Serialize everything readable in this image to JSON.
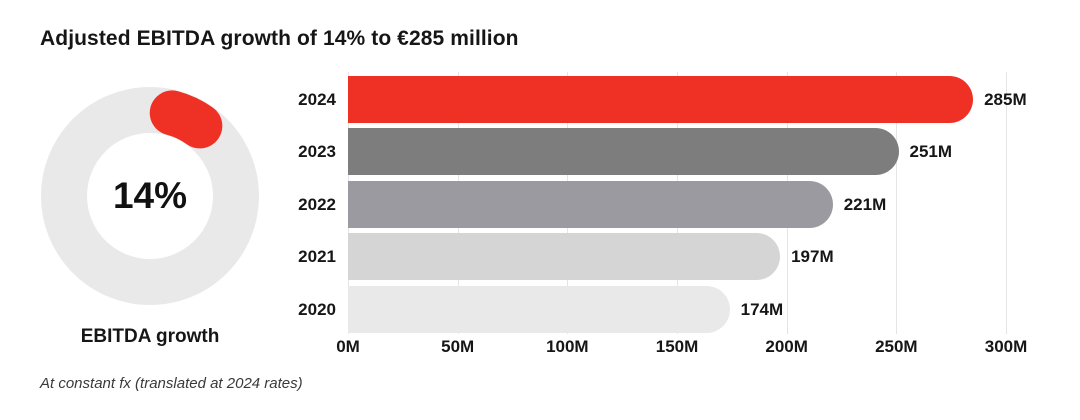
{
  "title": "Adjusted EBITDA growth of 14% to €285 million",
  "footnote": "At constant fx (translated at 2024 rates)",
  "colors": {
    "accent_red": "#ee3124",
    "text": "#161616",
    "gridline": "#e5e5e8",
    "donut_track": "#e9e9e9"
  },
  "chart_data": [
    {
      "type": "pie",
      "subtype": "donut-gauge",
      "title": "EBITDA growth",
      "center_label": "14%",
      "value_percent": 14,
      "slice_color": "#ee3124",
      "track_color": "#e9e9e9"
    },
    {
      "type": "bar",
      "orientation": "horizontal",
      "categories": [
        "2024",
        "2023",
        "2022",
        "2021",
        "2020"
      ],
      "values": [
        285,
        251,
        221,
        197,
        174
      ],
      "value_labels": [
        "285M",
        "251M",
        "221M",
        "197M",
        "174M"
      ],
      "bar_colors": [
        "#ee3124",
        "#7d7d7d",
        "#9b9aa0",
        "#d5d5d6",
        "#e9e9ea"
      ],
      "x_tick_values": [
        0,
        50,
        100,
        150,
        200,
        250,
        300
      ],
      "x_tick_labels": [
        "0M",
        "50M",
        "100M",
        "150M",
        "200M",
        "250M",
        "300M"
      ],
      "xlim": [
        0,
        300
      ],
      "grid": true,
      "legend": false,
      "unit": "M"
    }
  ]
}
